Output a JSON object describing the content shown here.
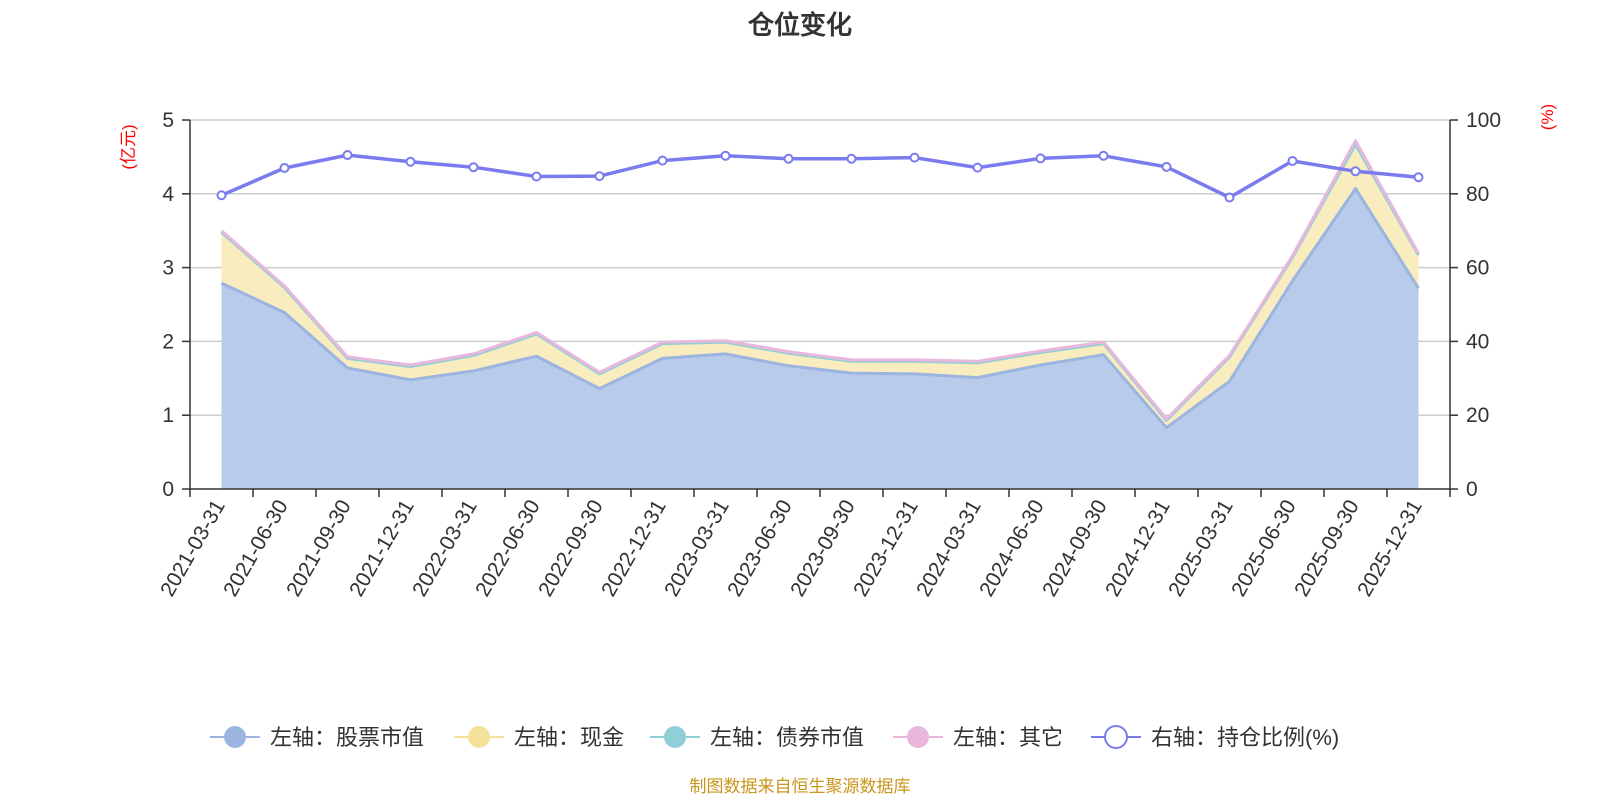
{
  "chart_data": {
    "type": "area",
    "title": "仓位变化",
    "left_unit": "(亿元)",
    "right_unit": "(%)",
    "x": [
      "2021-03-31",
      "2021-06-30",
      "2021-09-30",
      "2021-12-31",
      "2022-03-31",
      "2022-06-30",
      "2022-09-30",
      "2022-12-31",
      "2023-03-31",
      "2023-06-30",
      "2023-09-30",
      "2023-12-31",
      "2024-03-31",
      "2024-06-30",
      "2024-09-30",
      "2024-12-31",
      "2025-03-31",
      "2025-06-30",
      "2025-09-30",
      "2025-12-31"
    ],
    "y_left_range": [
      0,
      5
    ],
    "y_left_ticks": [
      0,
      1,
      2,
      3,
      4,
      5
    ],
    "y_right_range": [
      0,
      100
    ],
    "y_right_ticks": [
      0,
      20,
      40,
      60,
      80,
      100
    ],
    "grid": true,
    "legend_position": "bottom",
    "series": [
      {
        "name": "左轴：股票市值",
        "axis": "left",
        "kind": "stacked-area",
        "line_color": "#9bb5e0",
        "fill_color": "#b8cbea",
        "values": [
          2.79,
          2.39,
          1.64,
          1.48,
          1.6,
          1.8,
          1.36,
          1.77,
          1.83,
          1.67,
          1.57,
          1.56,
          1.51,
          1.68,
          1.82,
          0.83,
          1.46,
          2.82,
          4.07,
          2.72
        ]
      },
      {
        "name": "左轴：现金",
        "axis": "left",
        "kind": "stacked-area",
        "line_color": "#f5e29a",
        "fill_color": "#f9ecbe",
        "values": [
          0.69,
          0.34,
          0.13,
          0.18,
          0.21,
          0.3,
          0.2,
          0.2,
          0.16,
          0.17,
          0.16,
          0.17,
          0.2,
          0.17,
          0.15,
          0.1,
          0.33,
          0.32,
          0.6,
          0.45
        ]
      },
      {
        "name": "左轴：债券市值",
        "axis": "left",
        "kind": "stacked-area",
        "line_color": "#8fd0d8",
        "fill_color": "#a9dde3",
        "values": [
          0,
          0,
          0,
          0,
          0,
          0,
          0,
          0,
          0,
          0,
          0,
          0,
          0,
          0,
          0,
          0,
          0,
          0,
          0,
          0
        ]
      },
      {
        "name": "左轴：其它",
        "axis": "left",
        "kind": "stacked-area",
        "line_color": "#e8b7db",
        "fill_color": "#f0cde6",
        "values": [
          0.02,
          0.02,
          0.02,
          0.02,
          0.02,
          0.02,
          0.02,
          0.02,
          0.02,
          0.02,
          0.02,
          0.02,
          0.02,
          0.02,
          0.02,
          0.02,
          0.02,
          0.02,
          0.05,
          0.02
        ]
      },
      {
        "name": "右轴：持仓比例(%)",
        "axis": "right",
        "kind": "line",
        "line_color": "#7b7bf0",
        "values": [
          79.6,
          87.0,
          90.5,
          88.7,
          87.2,
          84.7,
          84.8,
          89.0,
          90.3,
          89.5,
          89.5,
          89.8,
          87.1,
          89.6,
          90.3,
          87.3,
          79.0,
          88.9,
          86.1,
          84.5
        ]
      }
    ]
  },
  "source_text": "制图数据来自恒生聚源数据库"
}
